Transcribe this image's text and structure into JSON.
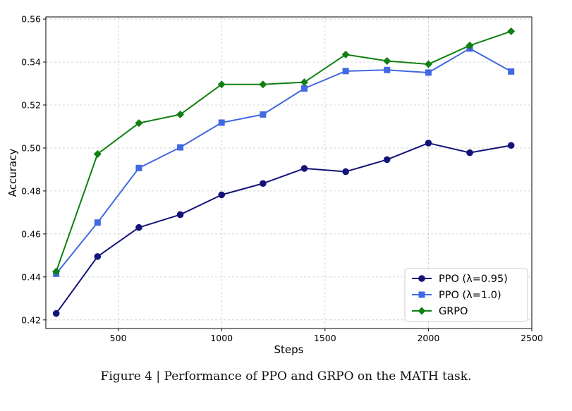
{
  "caption": "Figure 4 | Performance of PPO and GRPO on the MATH task.",
  "chart_data": {
    "type": "line",
    "title": "",
    "xlabel": "Steps",
    "ylabel": "Accuracy",
    "xlim": [
      150,
      2500
    ],
    "ylim": [
      0.416,
      0.561
    ],
    "xticks": [
      500,
      1000,
      1500,
      2000,
      2500
    ],
    "xtick_labels": [
      "500",
      "1000",
      "1500",
      "2000",
      "2500"
    ],
    "yticks": [
      0.42,
      0.44,
      0.46,
      0.48,
      0.5,
      0.52,
      0.54,
      0.56
    ],
    "ytick_labels": [
      "0.42",
      "0.44",
      "0.46",
      "0.48",
      "0.50",
      "0.52",
      "0.54",
      "0.56"
    ],
    "grid": true,
    "legend_position": "lower-right",
    "x": [
      200,
      400,
      600,
      800,
      1000,
      1200,
      1400,
      1600,
      1800,
      2000,
      2200,
      2400
    ],
    "series": [
      {
        "name": "PPO (λ=0.95)",
        "color": "#14137a",
        "marker": "circle",
        "values": [
          0.423,
          0.4495,
          0.463,
          0.469,
          0.4782,
          0.4835,
          0.4905,
          0.489,
          0.4946,
          0.5023,
          0.4978,
          0.5012
        ]
      },
      {
        "name": "PPO (λ=1.0)",
        "color": "#4169e1",
        "marker": "square",
        "values": [
          0.4415,
          0.4653,
          0.4907,
          0.5003,
          0.5118,
          0.5156,
          0.5277,
          0.5358,
          0.5363,
          0.5351,
          0.5463,
          0.5356
        ]
      },
      {
        "name": "GRPO",
        "color": "#108010",
        "marker": "diamond",
        "values": [
          0.4425,
          0.4972,
          0.5116,
          0.5156,
          0.5296,
          0.5296,
          0.5306,
          0.5435,
          0.5405,
          0.539,
          0.5477,
          0.5543
        ]
      }
    ]
  }
}
